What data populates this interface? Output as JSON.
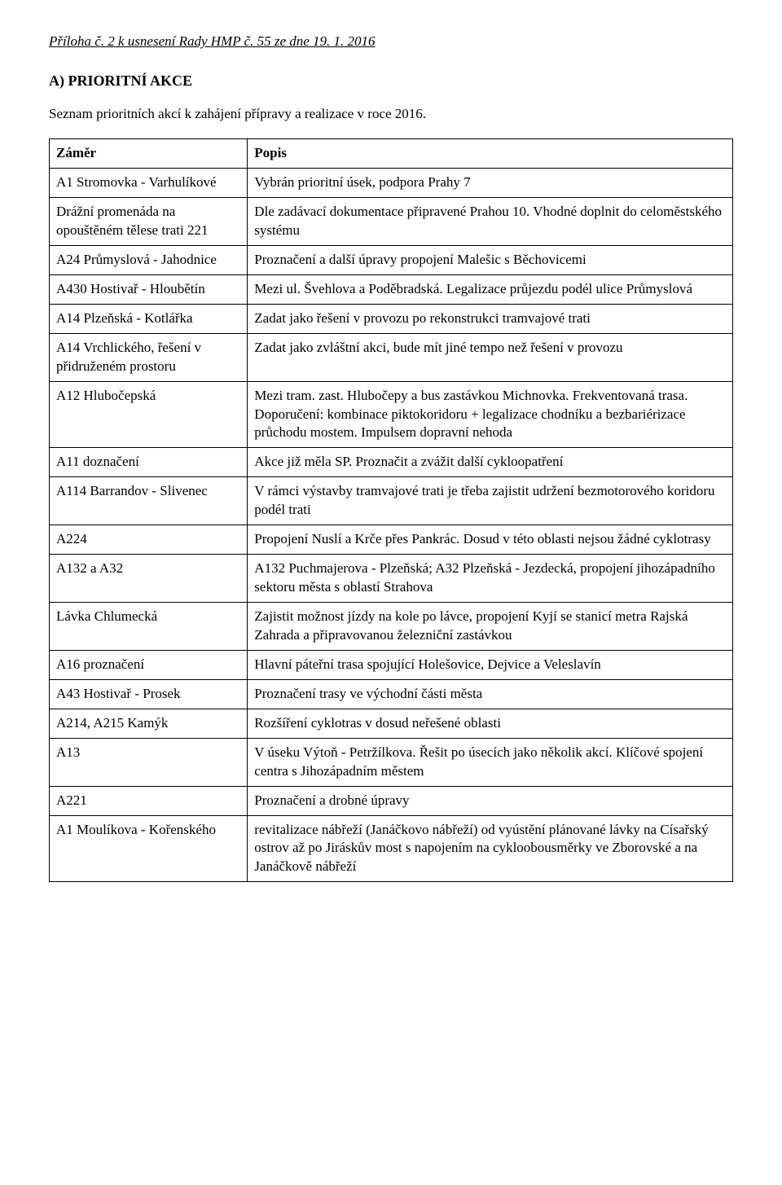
{
  "header": "Příloha č. 2 k usnesení Rady HMP č. 55 ze dne 19. 1. 2016",
  "section_title": "A) PRIORITNÍ AKCE",
  "intro": "Seznam prioritních akcí k zahájení přípravy a realizace v roce 2016.",
  "table": {
    "columns": [
      "Záměr",
      "Popis"
    ],
    "col_widths": [
      "29%",
      "71%"
    ],
    "border_color": "#000000",
    "font_family": "Times New Roman",
    "font_size_pt": 13,
    "rows": [
      {
        "zamer": "A1 Stromovka - Varhulíkové",
        "popis": "Vybrán prioritní úsek, podpora Prahy 7"
      },
      {
        "zamer": "Drážní promenáda na opouštěném tělese trati 221",
        "popis": "Dle zadávací dokumentace připravené Prahou 10. Vhodné doplnit do celoměstského systému"
      },
      {
        "zamer": "A24 Průmyslová - Jahodnice",
        "popis": "Proznačení a další úpravy propojení Malešic s Běchovicemi"
      },
      {
        "zamer": "A430 Hostivař - Hloubětín",
        "popis": "Mezi ul. Švehlova a Poděbradská. Legalizace průjezdu podél ulice Průmyslová"
      },
      {
        "zamer": "A14 Plzeňská - Kotlářka",
        "popis": "Zadat jako řešení v provozu po rekonstrukci tramvajové trati"
      },
      {
        "zamer": "A14 Vrchlického, řešení v přidruženém prostoru",
        "popis": "Zadat jako zvláštní akci, bude mít jiné tempo než řešení v provozu"
      },
      {
        "zamer": "A12 Hlubočepská",
        "popis": "Mezi tram. zast. Hlubočepy a bus zastávkou Michnovka. Frekventovaná trasa. Doporučení: kombinace piktokoridoru + legalizace chodníku a bezbariérizace průchodu mostem. Impulsem dopravní nehoda"
      },
      {
        "zamer": "A11 doznačení",
        "popis": "Akce již měla SP. Proznačit a zvážit další cykloopatření"
      },
      {
        "zamer": "A114 Barrandov - Slivenec",
        "popis": "V rámci výstavby tramvajové trati je třeba zajistit udržení bezmotorového koridoru podél trati"
      },
      {
        "zamer": "A224",
        "popis": "Propojení Nuslí a Krče přes Pankrác. Dosud v této oblasti nejsou žádné cyklotrasy"
      },
      {
        "zamer": "A132 a A32",
        "popis": "A132 Puchmajerova - Plzeňská; A32 Plzeňská - Jezdecká, propojení jihozápadního sektoru města s oblastí Strahova"
      },
      {
        "zamer": "Lávka Chlumecká",
        "popis": "Zajistit možnost jízdy na kole po lávce, propojení Kyjí se stanicí metra Rajská Zahrada a připravovanou železniční zastávkou"
      },
      {
        "zamer": "A16 proznačení",
        "popis": "Hlavní páteřní trasa spojující Holešovice, Dejvice a Veleslavín"
      },
      {
        "zamer": "A43 Hostivař - Prosek",
        "popis": "Proznačení trasy ve východní části města"
      },
      {
        "zamer": "A214, A215 Kamýk",
        "popis": "Rozšíření cyklotras v dosud neřešené oblasti"
      },
      {
        "zamer": "A13",
        "popis": "V úseku Výtoň - Petržílkova. Řešit po úsecích jako několik akcí. Klíčové spojení centra s Jihozápadním městem"
      },
      {
        "zamer": "A221",
        "popis": "Proznačení a drobné úpravy"
      },
      {
        "zamer": "A1 Moulíkova - Kořenského",
        "popis": "revitalizace nábřeží (Janáčkovo nábřeží) od vyústění plánované lávky na Císařský ostrov až po Jiráskův most s napojením na cykloobousměrky ve Zborovské a na Janáčkově nábřeží"
      }
    ]
  },
  "styles": {
    "page_bg": "#ffffff",
    "text_color": "#000000",
    "header_italic": true,
    "header_underline": true
  }
}
